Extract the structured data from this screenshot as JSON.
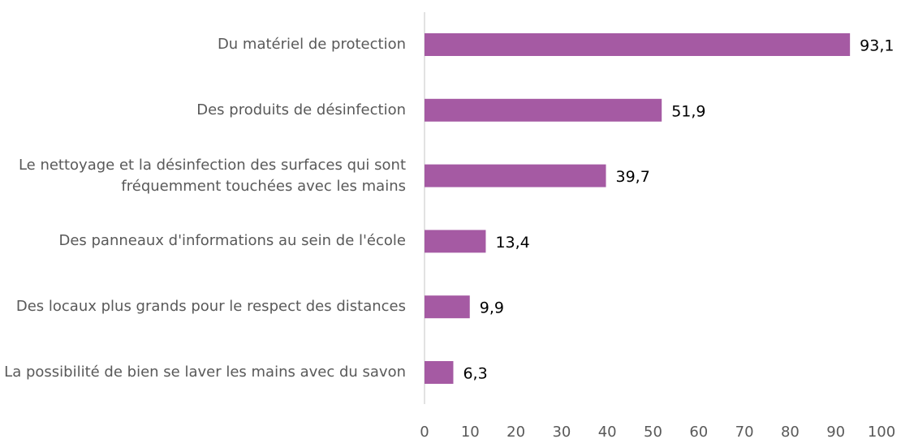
{
  "chart_data": {
    "type": "bar",
    "orientation": "horizontal",
    "categories": [
      "Du matériel de protection",
      "Des produits de désinfection",
      "Le nettoyage et la désinfection des surfaces qui sont fréquemment touchées avec les mains",
      "Des panneaux d'informations au sein de l'école",
      "Des locaux plus grands pour le respect des distances",
      "La possibilité de bien se laver les mains avec du savon"
    ],
    "values": [
      93.1,
      51.9,
      39.7,
      13.4,
      9.9,
      6.3
    ],
    "value_labels": [
      "93,1",
      "51,9",
      "39,7",
      "13,4",
      "9,9",
      "6,3"
    ],
    "color": "#a55aa3",
    "xlim": [
      0,
      100
    ],
    "xticks": [
      0,
      10,
      20,
      30,
      40,
      50,
      60,
      70,
      80,
      90,
      100
    ],
    "grid": false
  }
}
